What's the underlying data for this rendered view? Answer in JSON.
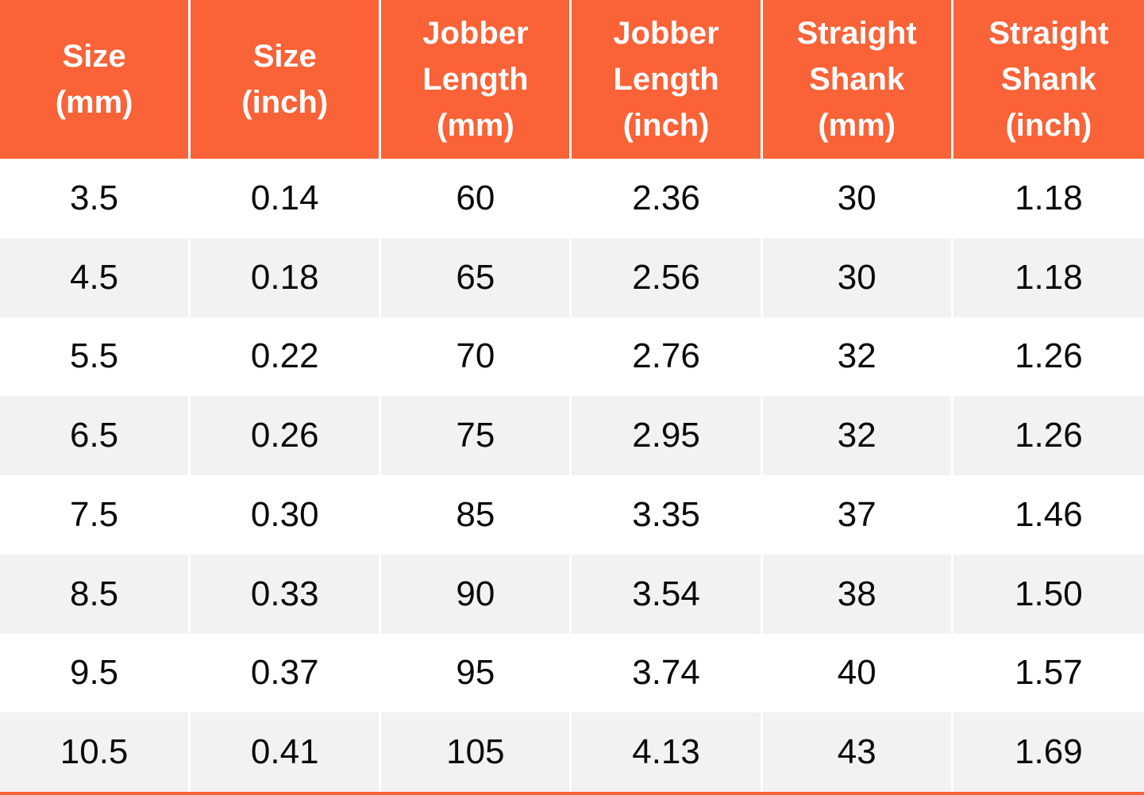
{
  "table": {
    "accent_color": "#fa6237",
    "alt_row_color": "#f2f2f2",
    "divider_color": "#ffffff",
    "header_text_color": "#ffffff",
    "body_text_color": "#0a0a0a",
    "columns": [
      "Size\n(mm)",
      "Size\n(inch)",
      "Jobber\nLength\n(mm)",
      "Jobber\nLength\n(inch)",
      "Straight\nShank\n(mm)",
      "Straight\nShank\n(inch)"
    ],
    "rows": [
      [
        "3.5",
        "0.14",
        "60",
        "2.36",
        "30",
        "1.18"
      ],
      [
        "4.5",
        "0.18",
        "65",
        "2.56",
        "30",
        "1.18"
      ],
      [
        "5.5",
        "0.22",
        "70",
        "2.76",
        "32",
        "1.26"
      ],
      [
        "6.5",
        "0.26",
        "75",
        "2.95",
        "32",
        "1.26"
      ],
      [
        "7.5",
        "0.30",
        "85",
        "3.35",
        "37",
        "1.46"
      ],
      [
        "8.5",
        "0.33",
        "90",
        "3.54",
        "38",
        "1.50"
      ],
      [
        "9.5",
        "0.37",
        "95",
        "3.74",
        "40",
        "1.57"
      ],
      [
        "10.5",
        "0.41",
        "105",
        "4.13",
        "43",
        "1.69"
      ]
    ]
  },
  "chart_data": {
    "type": "table",
    "title": "",
    "columns": [
      "Size (mm)",
      "Size (inch)",
      "Jobber Length (mm)",
      "Jobber Length (inch)",
      "Straight Shank (mm)",
      "Straight Shank (inch)"
    ],
    "rows": [
      [
        3.5,
        0.14,
        60,
        2.36,
        30,
        1.18
      ],
      [
        4.5,
        0.18,
        65,
        2.56,
        30,
        1.18
      ],
      [
        5.5,
        0.22,
        70,
        2.76,
        32,
        1.26
      ],
      [
        6.5,
        0.26,
        75,
        2.95,
        32,
        1.26
      ],
      [
        7.5,
        0.3,
        85,
        3.35,
        37,
        1.46
      ],
      [
        8.5,
        0.33,
        90,
        3.54,
        38,
        1.5
      ],
      [
        9.5,
        0.37,
        95,
        3.74,
        40,
        1.57
      ],
      [
        10.5,
        0.41,
        105,
        4.13,
        43,
        1.69
      ]
    ]
  }
}
